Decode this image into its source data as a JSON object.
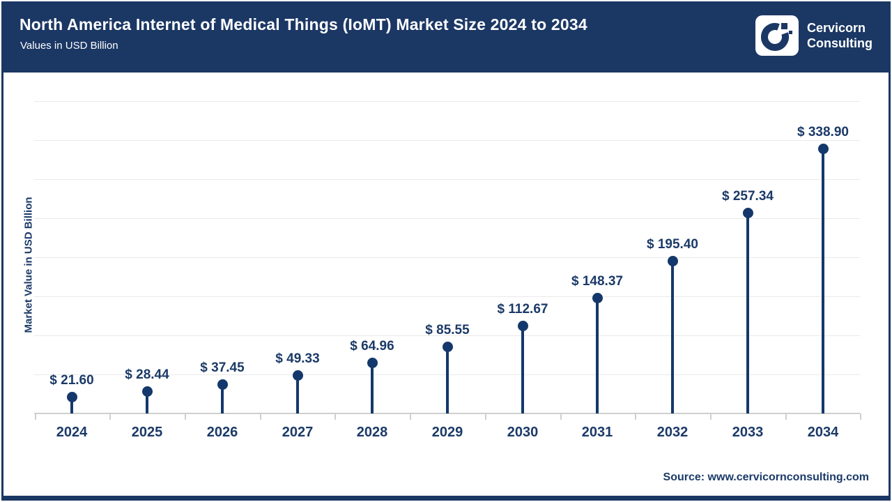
{
  "header": {
    "title": "North America Internet of Medical Things (IoMT) Market Size 2024 to 2034",
    "subtitle": "Values in USD Billion",
    "logo": {
      "line1": "Cervicorn",
      "line2": "Consulting"
    }
  },
  "chart_data": {
    "type": "lollipop",
    "title": "North America Internet of Medical Things (IoMT) Market Size 2024 to 2034",
    "subtitle": "Values in USD Billion",
    "categories": [
      "2024",
      "2025",
      "2026",
      "2027",
      "2028",
      "2029",
      "2030",
      "2031",
      "2032",
      "2033",
      "2034"
    ],
    "values": [
      21.6,
      28.44,
      37.45,
      49.33,
      64.96,
      85.55,
      112.67,
      148.37,
      195.4,
      257.34,
      338.9
    ],
    "labels": [
      "$ 21.60",
      "$ 28.44",
      "$ 37.45",
      "$ 49.33",
      "$ 64.96",
      "$ 85.55",
      "$ 112.67",
      "$ 148.37",
      "$ 195.40",
      "$ 257.34",
      "$ 338.90"
    ],
    "xlabel": "",
    "ylabel": "Market Value in USD Billion",
    "ylim": [
      0,
      400
    ],
    "grid_step": 50,
    "grid": true,
    "legend": false,
    "y_tick_labels_visible": false
  },
  "footer": {
    "source": "Source: www.cervicornconsulting.com"
  },
  "colors": {
    "navy": "#1b3764",
    "ink": "#1b3a68",
    "stem": "#14386b",
    "grid": "#e9e9e9",
    "axis": "#cfcfcf",
    "panel": "#ffffff"
  }
}
